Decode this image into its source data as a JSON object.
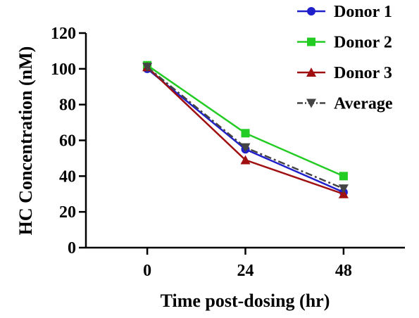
{
  "chart_data": {
    "type": "line",
    "title": "",
    "xlabel": "Time post-dosing  (hr)",
    "ylabel": "HC Concentration (nM)",
    "x": [
      0,
      24,
      48
    ],
    "x_tick_labels": [
      "0",
      "24",
      "48"
    ],
    "xlim": [
      -15,
      63
    ],
    "ylim": [
      0,
      120
    ],
    "y_ticks": [
      0,
      20,
      40,
      60,
      80,
      100,
      120
    ],
    "y_tick_labels": [
      "0",
      "20",
      "40",
      "60",
      "80",
      "100",
      "120"
    ],
    "grid": false,
    "legend_position": "top-right",
    "series": [
      {
        "name": "Donor 1",
        "values": [
          100,
          55,
          31
        ],
        "color": "#1f1fcc",
        "marker": "circle",
        "line": "solid"
      },
      {
        "name": "Donor 2",
        "values": [
          102,
          64,
          40
        ],
        "color": "#22cc22",
        "marker": "square",
        "line": "solid"
      },
      {
        "name": "Donor 3",
        "values": [
          101,
          49,
          30
        ],
        "color": "#a01010",
        "marker": "triangle-up",
        "line": "solid"
      },
      {
        "name": "Average",
        "values": [
          101,
          56,
          33
        ],
        "color": "#444444",
        "marker": "triangle-down",
        "line": "dashdot"
      }
    ]
  }
}
